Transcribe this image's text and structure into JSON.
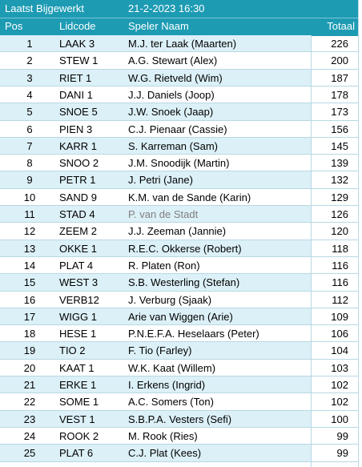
{
  "header": {
    "title": "Laatst Bijgewerkt",
    "updated": "21-2-2023 16:30"
  },
  "table": {
    "columns": [
      "Pos",
      "Lidcode",
      "Speler Naam",
      "Totaal"
    ],
    "rows": [
      [
        1,
        "LAAK 3",
        "M.J. ter Laak (Maarten)",
        226
      ],
      [
        2,
        "STEW 1",
        "A.G. Stewart (Alex)",
        200
      ],
      [
        3,
        "RIET 1",
        "W.G. Rietveld (Wim)",
        187
      ],
      [
        4,
        "DANI 1",
        "J.J. Daniels (Joop)",
        178
      ],
      [
        5,
        "SNOE 5",
        "J.W. Snoek (Jaap)",
        173
      ],
      [
        6,
        "PIEN 3",
        "C.J. Pienaar (Cassie)",
        156
      ],
      [
        7,
        "KARR 1",
        "S. Karreman (Sam)",
        145
      ],
      [
        8,
        "SNOO 2",
        "J.M. Snoodijk (Martin)",
        139
      ],
      [
        9,
        "PETR 1",
        "J. Petri (Jane)",
        132
      ],
      [
        10,
        "SAND 9",
        "K.M. van de Sande (Karin)",
        129
      ],
      [
        11,
        "STAD 4",
        "P. van de Stadt",
        126
      ],
      [
        12,
        "ZEEM 2",
        "J.J. Zeeman (Jannie)",
        120
      ],
      [
        13,
        "OKKE 1",
        "R.E.C. Okkerse (Robert)",
        118
      ],
      [
        14,
        "PLAT 4",
        "R. Platen (Ron)",
        116
      ],
      [
        15,
        "WEST 3",
        "S.B. Westerling (Stefan)",
        116
      ],
      [
        16,
        "VERB12",
        "J. Verburg (Sjaak)",
        112
      ],
      [
        17,
        "WIGG 1",
        "Arie van Wiggen (Arie)",
        109
      ],
      [
        18,
        "HESE 1",
        "P.N.E.F.A. Heselaars (Peter)",
        106
      ],
      [
        19,
        "TIO 2",
        "F. Tio (Farley)",
        104
      ],
      [
        20,
        "KAAT 1",
        "W.K. Kaat (Willem)",
        103
      ],
      [
        21,
        "ERKE 1",
        "I. Erkens (Ingrid)",
        102
      ],
      [
        22,
        "SOME 1",
        "A.C. Somers (Ton)",
        102
      ],
      [
        23,
        "VEST 1",
        "S.B.P.A. Vesters (Sefi)",
        100
      ],
      [
        24,
        "ROOK 2",
        "M. Rook (Ries)",
        99
      ],
      [
        25,
        "PLAT 6",
        "C.J. Plat (Kees)",
        99
      ]
    ]
  }
}
